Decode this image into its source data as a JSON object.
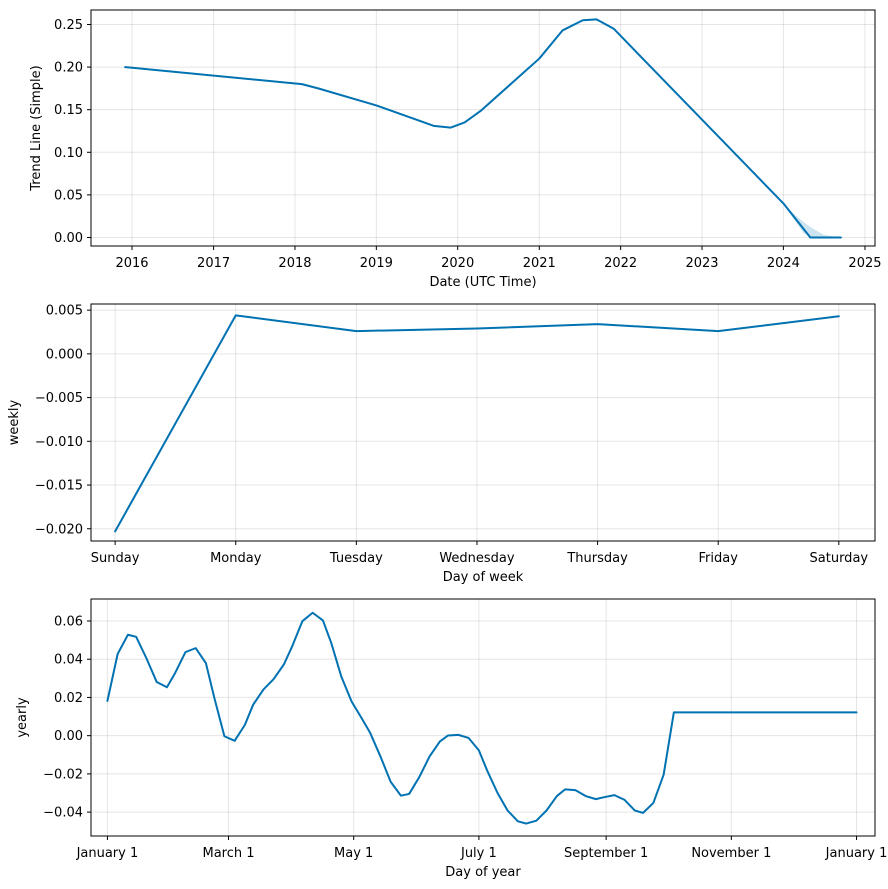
{
  "chart_data": [
    {
      "type": "area",
      "title": "",
      "xlabel": "Date (UTC Time)",
      "ylabel": "Trend Line (Simple)",
      "x_type": "date",
      "xlim": [
        "2015-07-01",
        "2025-02-15"
      ],
      "ylim": [
        -0.01,
        0.267
      ],
      "grid": true,
      "line_color": "#0072B2",
      "band_color": "#0072B2",
      "x_ticks": [
        "2016-01-01",
        "2017-01-01",
        "2018-01-01",
        "2019-01-01",
        "2020-01-01",
        "2021-01-01",
        "2022-01-01",
        "2023-01-01",
        "2024-01-01",
        "2025-01-01"
      ],
      "x_tick_labels": [
        "2016",
        "2017",
        "2018",
        "2019",
        "2020",
        "2021",
        "2022",
        "2023",
        "2024",
        "2025"
      ],
      "y_ticks": [
        0.0,
        0.05,
        0.1,
        0.15,
        0.2,
        0.25
      ],
      "y_tick_labels": [
        "0.00",
        "0.05",
        "0.10",
        "0.15",
        "0.20",
        "0.25"
      ],
      "series": [
        {
          "x": [
            "2015-12-01",
            "2018-02-01",
            "2018-04-15",
            "2019-01-01",
            "2019-09-15",
            "2019-12-01",
            "2020-02-01",
            "2020-04-15",
            "2021-01-01",
            "2021-04-15",
            "2021-07-15",
            "2021-09-15",
            "2021-12-01",
            "2024-01-01",
            "2024-05-01",
            "2024-09-15"
          ],
          "y": [
            0.2,
            0.18,
            0.175,
            0.155,
            0.131,
            0.129,
            0.135,
            0.149,
            0.21,
            0.243,
            0.255,
            0.256,
            0.245,
            0.04,
            0.0,
            0.0
          ]
        }
      ],
      "band": {
        "x": [
          "2024-01-01",
          "2024-02-15",
          "2024-04-01",
          "2024-05-15",
          "2024-07-01",
          "2024-09-15"
        ],
        "upper": [
          0.04,
          0.028,
          0.018,
          0.01,
          0.003,
          0.0
        ],
        "lower": [
          0.04,
          0.022,
          0.005,
          0.0,
          0.0,
          0.0
        ]
      }
    },
    {
      "type": "line",
      "title": "",
      "xlabel": "Day of week",
      "ylabel": "weekly",
      "categories": [
        "Sunday",
        "Monday",
        "Tuesday",
        "Wednesday",
        "Thursday",
        "Friday",
        "Saturday"
      ],
      "xlim": [
        -0.2,
        6.3
      ],
      "ylim": [
        -0.0214,
        0.0057
      ],
      "grid": true,
      "line_color": "#0072B2",
      "y_ticks": [
        0.005,
        0.0,
        -0.005,
        -0.01,
        -0.015,
        -0.02
      ],
      "y_tick_labels": [
        "0.005",
        "0.000",
        "−0.005",
        "−0.010",
        "−0.015",
        "−0.020"
      ],
      "series": [
        {
          "values": [
            -0.0203,
            0.0044,
            0.0026,
            0.0029,
            0.0034,
            0.0026,
            0.0043
          ]
        }
      ]
    },
    {
      "type": "line",
      "title": "",
      "xlabel": "Day of year",
      "ylabel": "yearly",
      "xlim": [
        -8,
        374
      ],
      "ylim": [
        -0.0525,
        0.0715
      ],
      "grid": true,
      "line_color": "#0072B2",
      "x_ticks": [
        0,
        59,
        120,
        181,
        243,
        304,
        365
      ],
      "x_tick_labels": [
        "January 1",
        "March 1",
        "May 1",
        "July 1",
        "September 1",
        "November 1",
        "January 1"
      ],
      "y_ticks": [
        0.06,
        0.04,
        0.02,
        0.0,
        -0.02,
        -0.04
      ],
      "y_tick_labels": [
        "0.06",
        "0.04",
        "0.02",
        "0.00",
        "−0.02",
        "−0.04"
      ],
      "series": [
        {
          "x": [
            0,
            5,
            10,
            14,
            19,
            24,
            29,
            33,
            38,
            43,
            48,
            52,
            57,
            62,
            67,
            71,
            76,
            81,
            86,
            90,
            95,
            100,
            105,
            109,
            114,
            119,
            124,
            128,
            133,
            138,
            143,
            147,
            152,
            157,
            162,
            166,
            171,
            176,
            181,
            185,
            190,
            195,
            200,
            204,
            209,
            214,
            219,
            223,
            228,
            233,
            238,
            242,
            247,
            252,
            257,
            261,
            266,
            271,
            276,
            280,
            285,
            290,
            295,
            299,
            304,
            309,
            314,
            318,
            323,
            328,
            333,
            337,
            342,
            347,
            352,
            356,
            361,
            365
          ],
          "y": [
            0.0182,
            0.0428,
            0.0528,
            0.0517,
            0.0405,
            0.0281,
            0.0253,
            0.0328,
            0.0437,
            0.0458,
            0.0379,
            0.0202,
            -0.0003,
            -0.0027,
            0.0057,
            0.0162,
            0.0241,
            0.0296,
            0.0373,
            0.0467,
            0.0599,
            0.0643,
            0.0603,
            0.0487,
            0.0308,
            0.0178,
            0.0089,
            0.0015,
            -0.0108,
            -0.0241,
            -0.0314,
            -0.0305,
            -0.0216,
            -0.0108,
            -0.003,
            0.0001,
            0.0004,
            -0.0012,
            -0.0077,
            -0.0182,
            -0.0298,
            -0.0392,
            -0.0448,
            -0.046,
            -0.0445,
            -0.0391,
            -0.0316,
            -0.0281,
            -0.0285,
            -0.0316,
            -0.0332,
            -0.0322,
            -0.0311,
            -0.0336,
            -0.0392,
            -0.0404,
            -0.0352,
            -0.0205,
            0.0122,
            0.0123,
            0.0123,
            0.0123,
            0.0123,
            0.0123,
            0.0123,
            0.0123,
            0.0123,
            0.0123,
            0.0123,
            0.0123,
            0.0123,
            0.0123,
            0.0123,
            0.0123,
            0.0123,
            0.0123,
            0.0123,
            0.0123
          ]
        }
      ]
    }
  ]
}
